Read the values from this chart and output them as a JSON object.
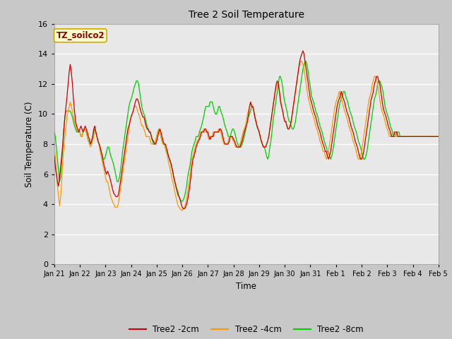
{
  "title": "Tree 2 Soil Temperature",
  "xlabel": "Time",
  "ylabel": "Soil Temperature (C)",
  "annotation_label": "TZ_soilco2",
  "fig_facecolor": "#c8c8c8",
  "plot_bg_color": "#e8e8e8",
  "ylim": [
    0,
    16
  ],
  "yticks": [
    0,
    2,
    4,
    6,
    8,
    10,
    12,
    14,
    16
  ],
  "line_colors": {
    "2cm": "#cc0000",
    "4cm": "#ff9900",
    "8cm": "#00cc00"
  },
  "legend_labels": [
    "Tree2 -2cm",
    "Tree2 -4cm",
    "Tree2 -8cm"
  ],
  "x_tick_labels": [
    "Jan 21",
    "Jan 22",
    "Jan 23",
    "Jan 24",
    "Jan 25",
    "Jan 26",
    "Jan 27",
    "Jan 28",
    "Jan 29",
    "Jan 30",
    "Jan 31",
    "Feb 1",
    "Feb 2",
    "Feb 3",
    "Feb 4",
    "Feb 5"
  ],
  "t2cm": [
    7.2,
    6.5,
    6.0,
    5.5,
    5.2,
    5.8,
    6.5,
    7.2,
    8.0,
    9.0,
    9.8,
    10.5,
    11.2,
    12.0,
    12.8,
    13.3,
    12.8,
    12.0,
    11.0,
    10.2,
    9.5,
    9.2,
    9.0,
    8.8,
    9.0,
    9.2,
    9.0,
    8.8,
    9.0,
    9.2,
    9.0,
    8.8,
    8.5,
    8.3,
    8.0,
    8.2,
    8.5,
    9.0,
    9.2,
    8.8,
    8.5,
    8.2,
    8.0,
    7.8,
    7.5,
    7.2,
    6.8,
    6.5,
    6.2,
    6.0,
    6.2,
    6.0,
    5.8,
    5.5,
    5.2,
    4.9,
    4.7,
    4.6,
    4.5,
    4.5,
    4.6,
    5.0,
    5.5,
    6.0,
    6.5,
    7.0,
    7.5,
    8.0,
    8.5,
    9.0,
    9.2,
    9.5,
    9.8,
    10.0,
    10.2,
    10.5,
    10.8,
    11.0,
    11.0,
    10.8,
    10.5,
    10.2,
    10.0,
    9.8,
    9.8,
    9.5,
    9.2,
    9.0,
    9.0,
    8.8,
    8.8,
    8.5,
    8.3,
    8.2,
    8.0,
    8.0,
    8.2,
    8.5,
    8.8,
    9.0,
    8.8,
    8.5,
    8.2,
    8.0,
    8.0,
    7.8,
    7.5,
    7.2,
    7.0,
    6.8,
    6.5,
    6.2,
    5.8,
    5.5,
    5.2,
    4.9,
    4.6,
    4.5,
    4.3,
    4.0,
    3.8,
    3.7,
    3.7,
    3.8,
    4.0,
    4.3,
    4.7,
    5.2,
    5.8,
    6.5,
    7.0,
    7.2,
    7.5,
    7.8,
    8.0,
    8.2,
    8.3,
    8.5,
    8.8,
    8.8,
    8.8,
    9.0,
    9.0,
    8.8,
    8.8,
    8.5,
    8.3,
    8.5,
    8.5,
    8.5,
    8.8,
    8.8,
    8.8,
    8.8,
    8.8,
    9.0,
    9.0,
    8.8,
    8.5,
    8.2,
    8.0,
    8.0,
    8.0,
    8.0,
    8.2,
    8.5,
    8.5,
    8.5,
    8.3,
    8.2,
    8.0,
    7.8,
    7.8,
    7.8,
    7.8,
    8.0,
    8.2,
    8.5,
    8.8,
    9.0,
    9.2,
    9.5,
    10.0,
    10.5,
    10.8,
    10.5,
    10.5,
    10.2,
    9.8,
    9.5,
    9.2,
    9.0,
    8.8,
    8.5,
    8.2,
    8.0,
    7.8,
    7.8,
    7.8,
    8.0,
    8.2,
    8.5,
    9.0,
    9.5,
    10.0,
    10.5,
    11.0,
    11.5,
    12.0,
    12.2,
    12.0,
    11.5,
    10.8,
    10.5,
    10.2,
    9.8,
    9.5,
    9.5,
    9.2,
    9.0,
    9.0,
    9.2,
    9.5,
    10.0,
    10.5,
    11.0,
    11.5,
    12.0,
    12.5,
    13.0,
    13.5,
    13.8,
    14.0,
    14.2,
    14.0,
    13.5,
    13.0,
    12.5,
    12.0,
    11.5,
    11.0,
    10.8,
    10.5,
    10.2,
    10.0,
    9.8,
    9.5,
    9.2,
    9.0,
    8.8,
    8.5,
    8.2,
    8.0,
    7.8,
    7.5,
    7.5,
    7.2,
    7.0,
    7.2,
    7.5,
    8.0,
    8.5,
    9.0,
    9.5,
    10.0,
    10.5,
    10.8,
    11.0,
    11.2,
    11.5,
    11.2,
    11.0,
    10.8,
    10.5,
    10.2,
    10.0,
    9.8,
    9.5,
    9.2,
    9.0,
    8.8,
    8.5,
    8.2,
    8.0,
    7.8,
    7.5,
    7.2,
    7.0,
    7.0,
    7.2,
    7.5,
    8.0,
    8.5,
    9.0,
    9.5,
    10.0,
    10.5,
    11.0,
    11.2,
    11.5,
    12.0,
    12.2,
    12.5,
    12.5,
    12.2,
    12.0,
    11.5,
    11.0,
    10.5,
    10.2,
    10.0,
    9.8,
    9.5,
    9.2,
    9.0,
    8.8,
    8.5,
    8.5,
    8.5,
    8.8,
    8.8,
    8.8,
    8.5,
    8.5
  ],
  "t4cm": [
    7.8,
    7.2,
    6.2,
    5.2,
    4.5,
    3.9,
    4.5,
    5.5,
    6.8,
    7.8,
    8.5,
    9.2,
    9.8,
    10.2,
    10.5,
    10.8,
    10.5,
    10.2,
    9.8,
    9.5,
    9.2,
    9.0,
    8.8,
    8.8,
    8.8,
    8.5,
    8.5,
    8.8,
    9.0,
    9.0,
    8.8,
    8.5,
    8.2,
    8.0,
    7.8,
    8.0,
    8.2,
    8.5,
    8.8,
    8.8,
    8.5,
    8.2,
    8.0,
    7.5,
    7.2,
    6.8,
    6.5,
    6.2,
    5.8,
    5.5,
    5.5,
    5.2,
    4.8,
    4.5,
    4.3,
    4.1,
    4.0,
    3.8,
    3.8,
    3.8,
    4.0,
    4.5,
    5.0,
    5.5,
    6.0,
    6.5,
    7.0,
    7.5,
    8.0,
    8.5,
    9.0,
    9.5,
    9.8,
    10.0,
    10.2,
    10.5,
    10.5,
    10.5,
    10.2,
    10.0,
    9.8,
    9.5,
    9.2,
    9.2,
    9.0,
    8.8,
    8.5,
    8.5,
    8.5,
    8.5,
    8.2,
    8.0,
    8.0,
    8.0,
    8.0,
    8.2,
    8.5,
    8.8,
    9.0,
    8.8,
    8.5,
    8.2,
    8.0,
    8.0,
    7.8,
    7.5,
    7.2,
    6.8,
    6.5,
    6.2,
    5.8,
    5.5,
    5.2,
    4.8,
    4.5,
    4.2,
    3.9,
    3.8,
    3.7,
    3.6,
    3.6,
    3.7,
    3.8,
    4.0,
    4.3,
    4.8,
    5.3,
    5.8,
    6.5,
    7.0,
    7.2,
    7.5,
    7.8,
    8.0,
    8.2,
    8.3,
    8.5,
    8.8,
    8.8,
    8.8,
    9.0,
    9.0,
    8.8,
    8.8,
    8.5,
    8.3,
    8.5,
    8.5,
    8.5,
    8.8,
    8.8,
    8.8,
    8.8,
    8.8,
    9.0,
    9.0,
    8.8,
    8.5,
    8.2,
    8.0,
    8.0,
    8.0,
    8.0,
    8.2,
    8.5,
    8.5,
    8.5,
    8.3,
    8.2,
    8.0,
    7.8,
    7.8,
    7.8,
    7.8,
    8.0,
    8.2,
    8.5,
    8.8,
    9.0,
    9.2,
    9.5,
    10.0,
    10.2,
    10.5,
    10.8,
    10.5,
    10.5,
    10.2,
    9.8,
    9.5,
    9.2,
    9.0,
    8.8,
    8.5,
    8.2,
    8.0,
    7.8,
    7.8,
    7.8,
    8.0,
    8.2,
    8.5,
    9.0,
    9.5,
    10.0,
    10.5,
    11.0,
    11.5,
    11.8,
    12.0,
    12.0,
    11.5,
    11.0,
    10.5,
    10.2,
    9.8,
    9.5,
    9.5,
    9.2,
    9.0,
    9.0,
    9.2,
    9.5,
    10.0,
    10.5,
    11.0,
    11.5,
    12.0,
    12.5,
    13.0,
    13.3,
    13.5,
    13.5,
    13.3,
    13.0,
    12.5,
    12.0,
    11.5,
    11.0,
    10.8,
    10.5,
    10.2,
    10.0,
    9.8,
    9.5,
    9.2,
    9.0,
    8.8,
    8.5,
    8.2,
    8.0,
    7.8,
    7.5,
    7.5,
    7.2,
    7.0,
    7.2,
    7.5,
    8.0,
    8.5,
    9.0,
    9.5,
    10.0,
    10.5,
    10.8,
    11.0,
    11.2,
    11.5,
    11.2,
    11.0,
    10.8,
    10.5,
    10.2,
    10.0,
    9.8,
    9.5,
    9.2,
    9.0,
    8.8,
    8.5,
    8.2,
    8.0,
    7.8,
    7.5,
    7.2,
    7.0,
    7.0,
    7.2,
    7.5,
    8.0,
    8.5,
    9.0,
    9.5,
    10.0,
    10.5,
    11.0,
    11.2,
    11.5,
    12.0,
    12.2,
    12.5,
    12.5,
    12.2,
    12.0,
    11.5,
    11.0,
    10.5,
    10.2,
    10.0,
    9.8,
    9.5,
    9.2,
    9.0,
    8.8,
    8.5,
    8.5,
    8.5,
    8.8,
    8.8,
    8.8,
    8.5,
    8.5
  ],
  "t8cm": [
    8.8,
    8.5,
    7.8,
    7.0,
    6.2,
    5.5,
    5.8,
    6.8,
    7.8,
    9.0,
    9.8,
    10.2,
    10.2,
    10.2,
    10.2,
    10.2,
    10.0,
    9.8,
    9.5,
    9.2,
    9.0,
    8.8,
    8.8,
    8.8,
    8.8,
    8.5,
    8.5,
    8.8,
    9.0,
    9.0,
    8.8,
    8.5,
    8.2,
    8.2,
    8.0,
    8.2,
    8.5,
    8.8,
    9.0,
    8.8,
    8.5,
    8.2,
    8.0,
    7.8,
    7.5,
    7.2,
    7.0,
    7.0,
    7.2,
    7.5,
    7.8,
    7.8,
    7.5,
    7.2,
    7.0,
    6.8,
    6.5,
    6.2,
    5.8,
    5.5,
    5.5,
    5.8,
    6.2,
    6.8,
    7.5,
    8.0,
    8.5,
    9.0,
    9.5,
    10.0,
    10.5,
    10.8,
    11.0,
    11.2,
    11.5,
    11.8,
    12.0,
    12.2,
    12.2,
    12.0,
    11.5,
    11.0,
    10.5,
    10.2,
    10.0,
    9.8,
    9.5,
    9.2,
    9.0,
    8.8,
    8.8,
    8.5,
    8.2,
    8.0,
    8.0,
    8.2,
    8.5,
    8.8,
    9.0,
    8.8,
    8.5,
    8.2,
    8.0,
    8.0,
    7.8,
    7.5,
    7.5,
    7.2,
    7.0,
    6.8,
    6.5,
    6.2,
    5.8,
    5.5,
    5.2,
    5.0,
    4.8,
    4.5,
    4.3,
    4.2,
    4.2,
    4.3,
    4.5,
    4.8,
    5.2,
    5.8,
    6.2,
    6.5,
    7.0,
    7.5,
    7.8,
    8.0,
    8.2,
    8.5,
    8.5,
    8.5,
    8.8,
    9.0,
    9.2,
    9.5,
    9.8,
    10.2,
    10.5,
    10.5,
    10.5,
    10.5,
    10.8,
    10.8,
    10.8,
    10.5,
    10.2,
    10.0,
    10.0,
    10.2,
    10.5,
    10.5,
    10.2,
    10.0,
    9.8,
    9.5,
    9.2,
    9.0,
    8.8,
    8.5,
    8.5,
    8.5,
    8.8,
    9.0,
    9.0,
    8.8,
    8.5,
    8.2,
    8.0,
    7.8,
    7.8,
    7.8,
    8.0,
    8.2,
    8.5,
    8.8,
    9.2,
    9.5,
    9.8,
    10.0,
    10.2,
    10.5,
    10.5,
    10.2,
    9.8,
    9.5,
    9.2,
    9.0,
    8.8,
    8.5,
    8.2,
    8.0,
    7.8,
    7.8,
    7.5,
    7.2,
    7.0,
    7.2,
    7.8,
    8.2,
    8.8,
    9.5,
    10.0,
    10.5,
    11.0,
    11.5,
    12.0,
    12.5,
    12.5,
    12.2,
    11.8,
    11.2,
    10.8,
    10.5,
    10.2,
    9.8,
    9.5,
    9.5,
    9.2,
    9.0,
    9.0,
    9.2,
    9.5,
    10.0,
    10.5,
    11.0,
    11.5,
    12.0,
    12.5,
    13.0,
    13.2,
    13.5,
    13.5,
    13.2,
    12.8,
    12.2,
    11.8,
    11.2,
    11.0,
    10.8,
    10.5,
    10.2,
    10.0,
    9.8,
    9.5,
    9.2,
    9.0,
    8.8,
    8.5,
    8.2,
    8.0,
    7.8,
    7.5,
    7.5,
    7.2,
    7.0,
    7.2,
    7.5,
    8.0,
    8.5,
    9.0,
    9.5,
    10.0,
    10.5,
    10.8,
    11.0,
    11.2,
    11.5,
    11.5,
    11.2,
    11.0,
    10.8,
    10.5,
    10.2,
    10.0,
    9.8,
    9.5,
    9.2,
    9.0,
    8.8,
    8.5,
    8.2,
    8.0,
    7.8,
    7.5,
    7.2,
    7.0,
    7.0,
    7.2,
    7.5,
    8.0,
    8.5,
    9.0,
    9.5,
    10.0,
    10.5,
    11.0,
    11.2,
    11.5,
    12.0,
    12.2,
    12.2,
    12.0,
    11.8,
    11.5,
    11.0,
    10.5,
    10.2,
    10.0,
    9.8,
    9.5,
    9.2,
    9.0,
    8.8,
    8.5,
    8.5,
    8.5,
    8.8,
    8.8,
    8.8,
    8.5,
    8.5
  ]
}
